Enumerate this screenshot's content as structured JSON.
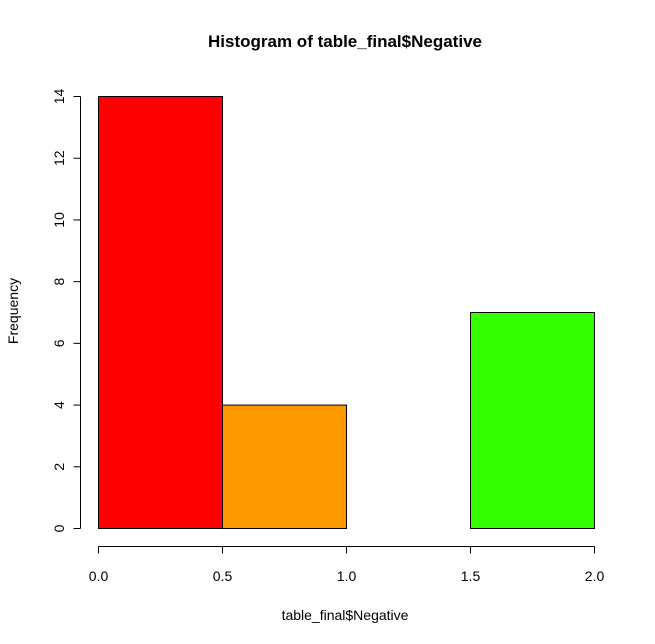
{
  "chart_data": {
    "type": "bar",
    "title": "Histogram of table_final$Negative",
    "xlabel": "table_final$Negative",
    "ylabel": "Frequency",
    "bins": [
      {
        "x0": 0.0,
        "x1": 0.5,
        "count": 14,
        "color": "#ff0000"
      },
      {
        "x0": 0.5,
        "x1": 1.0,
        "count": 4,
        "color": "#ff9900"
      },
      {
        "x0": 1.0,
        "x1": 1.5,
        "count": 0,
        "color": "#ccff00"
      },
      {
        "x0": 1.5,
        "x1": 2.0,
        "count": 7,
        "color": "#33ff00"
      }
    ],
    "xlim": [
      0.0,
      2.0
    ],
    "ylim": [
      0,
      14
    ],
    "xticks": [
      0.0,
      0.5,
      1.0,
      1.5,
      2.0
    ],
    "xtick_labels": [
      "0.0",
      "0.5",
      "1.0",
      "1.5",
      "2.0"
    ],
    "yticks": [
      0,
      2,
      4,
      6,
      8,
      10,
      12,
      14
    ],
    "ytick_labels": [
      "0",
      "2",
      "4",
      "6",
      "8",
      "10",
      "12",
      "14"
    ],
    "grid": false,
    "legend": "none"
  }
}
